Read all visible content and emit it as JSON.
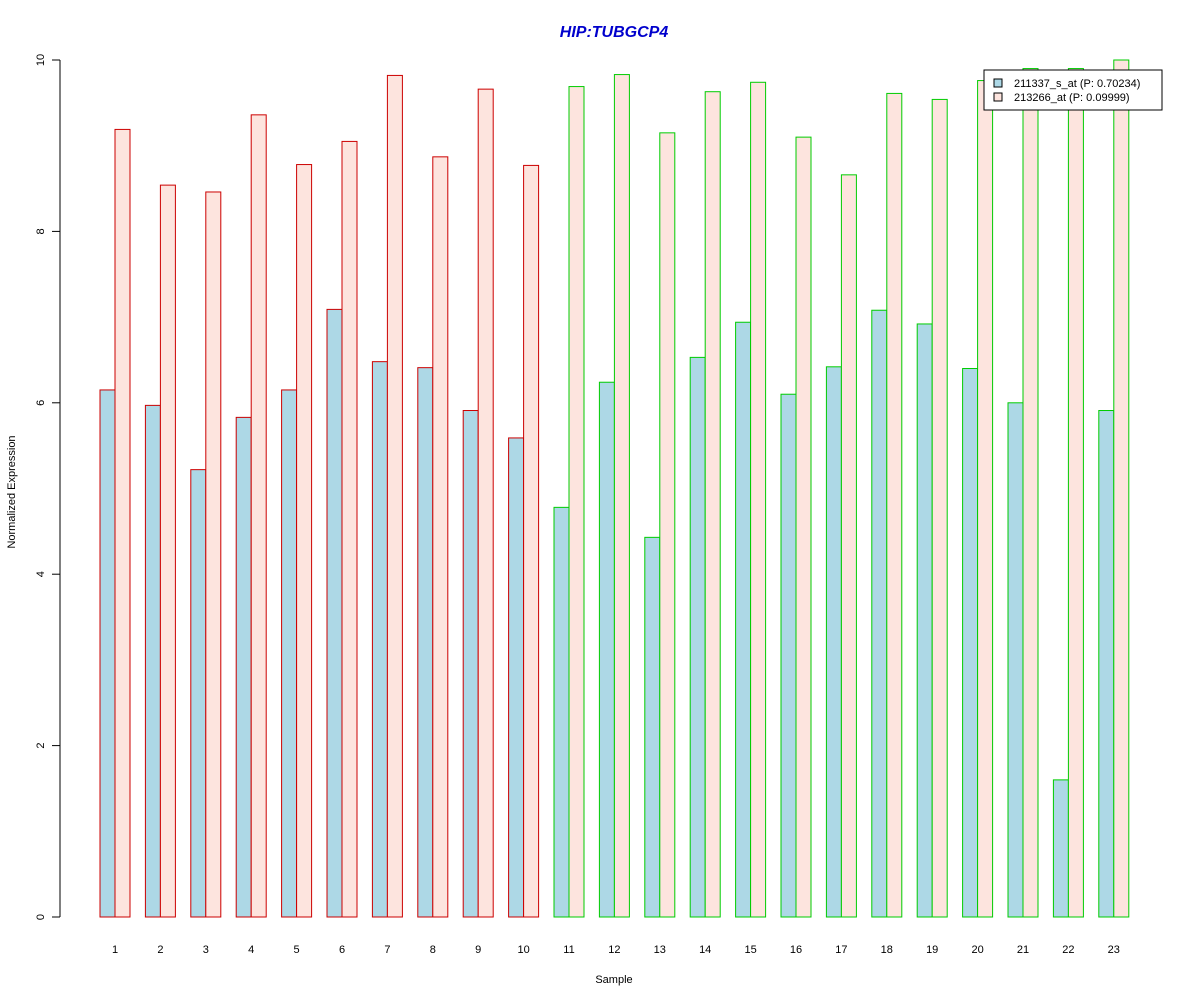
{
  "chart_data": {
    "type": "bar",
    "title": "HIP:TUBGCP4",
    "xlabel": "Sample",
    "ylabel": "Normalized Expression",
    "ylim": [
      0,
      10
    ],
    "yticks": [
      0,
      2,
      4,
      6,
      8,
      10
    ],
    "grid": false,
    "legend_position": "top-right",
    "categories": [
      "1",
      "2",
      "3",
      "4",
      "5",
      "6",
      "7",
      "8",
      "9",
      "10",
      "11",
      "12",
      "13",
      "14",
      "15",
      "16",
      "17",
      "18",
      "19",
      "20",
      "21",
      "22",
      "23"
    ],
    "group_border_colors": [
      "#cc0000",
      "#cc0000",
      "#cc0000",
      "#cc0000",
      "#cc0000",
      "#cc0000",
      "#cc0000",
      "#cc0000",
      "#cc0000",
      "#cc0000",
      "#00cc00",
      "#00cc00",
      "#00cc00",
      "#00cc00",
      "#00cc00",
      "#00cc00",
      "#00cc00",
      "#00cc00",
      "#00cc00",
      "#00cc00",
      "#00cc00",
      "#00cc00",
      "#00cc00"
    ],
    "series": [
      {
        "name": "211337_s_at (P: 0.70234)",
        "fill": "#add8e6",
        "values": [
          6.15,
          5.97,
          5.22,
          5.83,
          6.15,
          7.09,
          6.48,
          6.41,
          5.91,
          5.59,
          4.78,
          6.24,
          4.43,
          6.53,
          6.94,
          6.1,
          6.42,
          7.08,
          6.92,
          6.4,
          6.0,
          1.6,
          5.91
        ]
      },
      {
        "name": "213266_at (P: 0.09999)",
        "fill": "#fde4de",
        "values": [
          9.19,
          8.54,
          8.46,
          9.36,
          8.78,
          9.05,
          9.82,
          8.87,
          9.66,
          8.77,
          9.69,
          9.83,
          9.15,
          9.63,
          9.74,
          9.1,
          8.66,
          9.61,
          9.54,
          9.76,
          9.9,
          9.9,
          10.0
        ]
      }
    ],
    "colors": {
      "title": "#0000cc",
      "axis": "#000000",
      "legend_border": "#000000"
    }
  }
}
